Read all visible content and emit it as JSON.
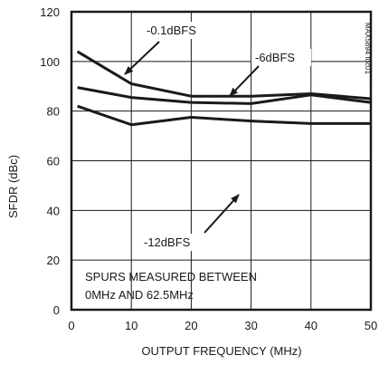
{
  "chart_data": {
    "type": "line",
    "title": "",
    "xlabel": "OUTPUT FREQUENCY (MHz)",
    "ylabel": "SFDR (dBc)",
    "xlim": [
      0,
      50
    ],
    "ylim": [
      0,
      120
    ],
    "x_ticks": [
      "0",
      "10",
      "20",
      "30",
      "40",
      "50"
    ],
    "y_ticks": [
      "0",
      "20",
      "40",
      "60",
      "80",
      "100",
      "120"
    ],
    "grid": true,
    "watermark": "MAX5894 toc01",
    "series": [
      {
        "name": "-0.1dBFS",
        "x": [
          1,
          10,
          20,
          30,
          40,
          50
        ],
        "y": [
          104,
          91,
          86,
          86,
          87,
          85
        ]
      },
      {
        "name": "-6dBFS",
        "x": [
          1,
          10,
          20,
          30,
          40,
          50
        ],
        "y": [
          89.5,
          85.5,
          83.5,
          83,
          86.5,
          83.5
        ]
      },
      {
        "name": "-12dBFS",
        "x": [
          1,
          10,
          20,
          30,
          40,
          50
        ],
        "y": [
          82,
          74.5,
          77.5,
          76,
          75,
          75
        ]
      }
    ],
    "annotations": {
      "note_line1": "SPURS MEASURED BETWEEN",
      "note_line2": "0MHz AND 62.5MHz"
    }
  }
}
